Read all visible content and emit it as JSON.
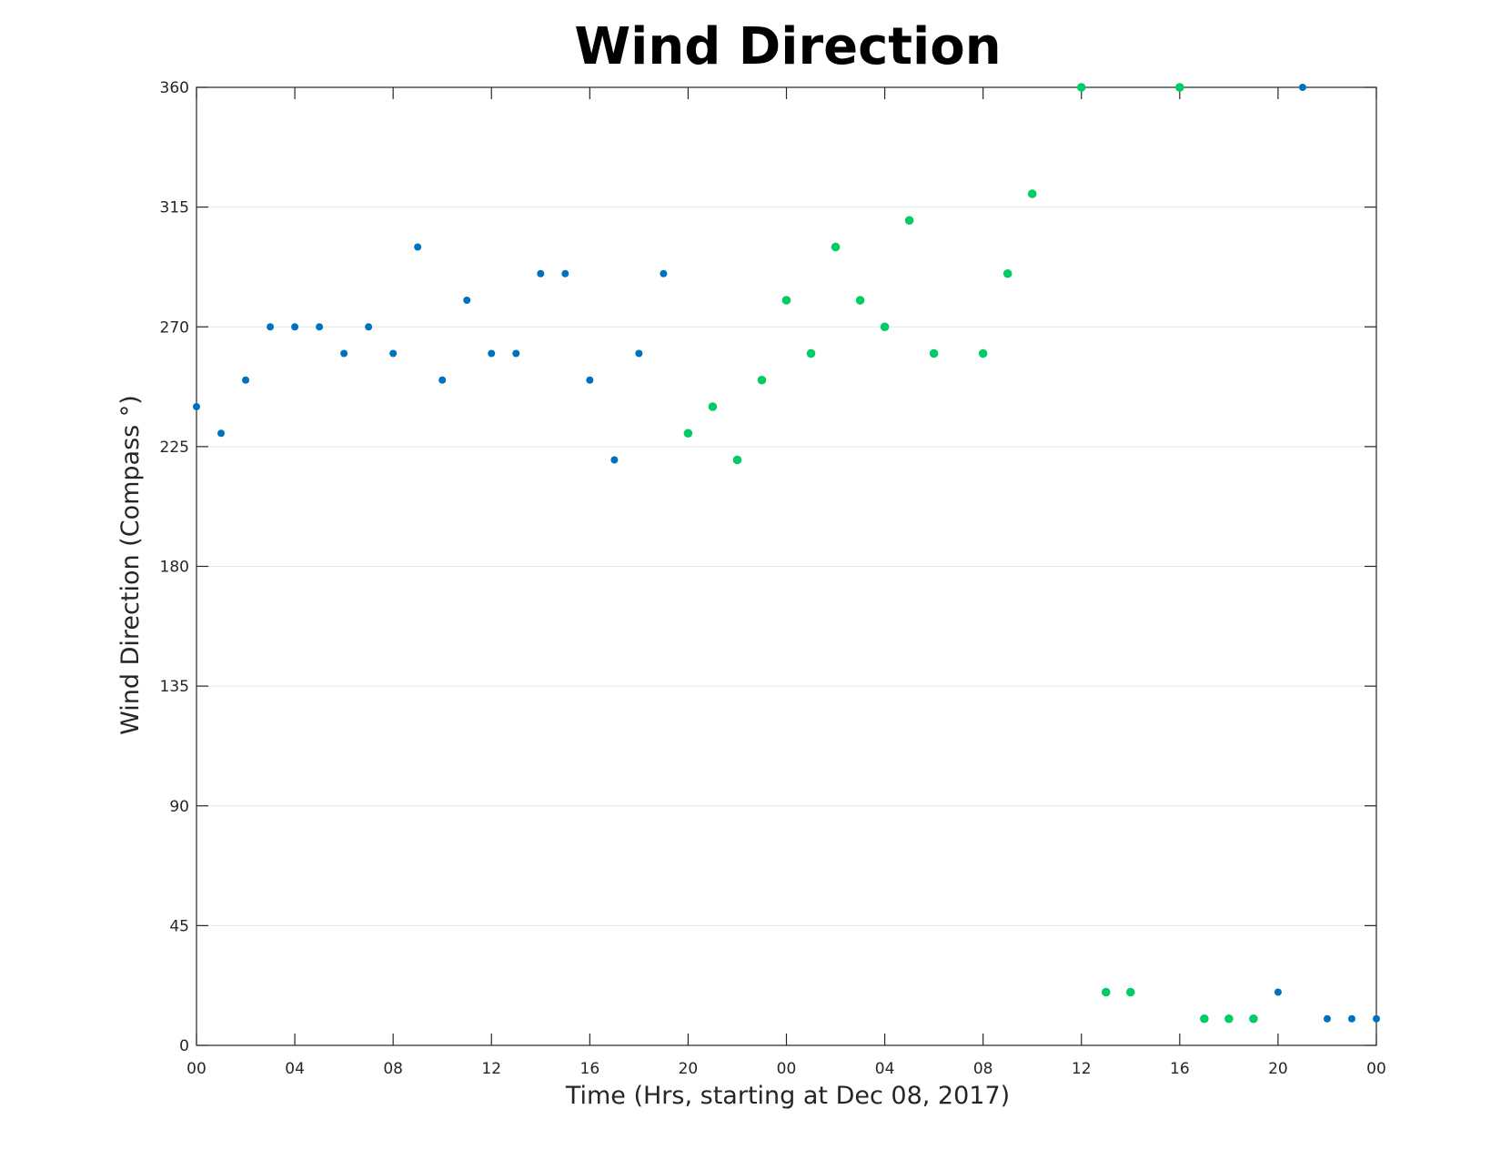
{
  "chart_data": {
    "type": "scatter",
    "title": "Wind Direction",
    "xlabel": "Time (Hrs, starting at Dec 08, 2017)",
    "ylabel": "Wind Direction (Compass °)",
    "x_unit": "hours",
    "xlim": [
      0,
      48
    ],
    "ylim": [
      0,
      360
    ],
    "yticks": [
      0,
      45,
      90,
      135,
      180,
      225,
      270,
      315,
      360
    ],
    "xtick_hours": [
      0,
      4,
      8,
      12,
      16,
      20,
      24,
      28,
      32,
      36,
      40,
      44,
      48
    ],
    "xtick_labels": [
      "00",
      "04",
      "08",
      "12",
      "16",
      "20",
      "00",
      "04",
      "08",
      "12",
      "16",
      "20",
      "00"
    ],
    "grid": "horizontal",
    "series": [
      {
        "color": "#0072bd",
        "x": [
          0,
          1,
          2,
          3,
          4,
          5,
          6,
          7,
          8,
          9,
          10,
          11,
          12,
          13,
          14,
          15,
          16,
          17,
          18,
          19,
          44,
          45,
          46,
          47,
          48
        ],
        "y": [
          240,
          230,
          250,
          270,
          270,
          270,
          260,
          270,
          260,
          300,
          250,
          280,
          260,
          260,
          290,
          290,
          250,
          220,
          260,
          290,
          20,
          360,
          10,
          10,
          10
        ]
      },
      {
        "color": "#00cc66",
        "x": [
          20,
          21,
          22,
          23,
          24,
          25,
          26,
          27,
          28,
          29,
          30,
          32,
          33,
          34,
          36,
          37,
          38,
          40,
          41,
          42,
          43
        ],
        "y": [
          230,
          240,
          220,
          250,
          280,
          260,
          300,
          280,
          270,
          310,
          260,
          260,
          290,
          320,
          360,
          20,
          20,
          360,
          10,
          10,
          10
        ]
      }
    ]
  }
}
